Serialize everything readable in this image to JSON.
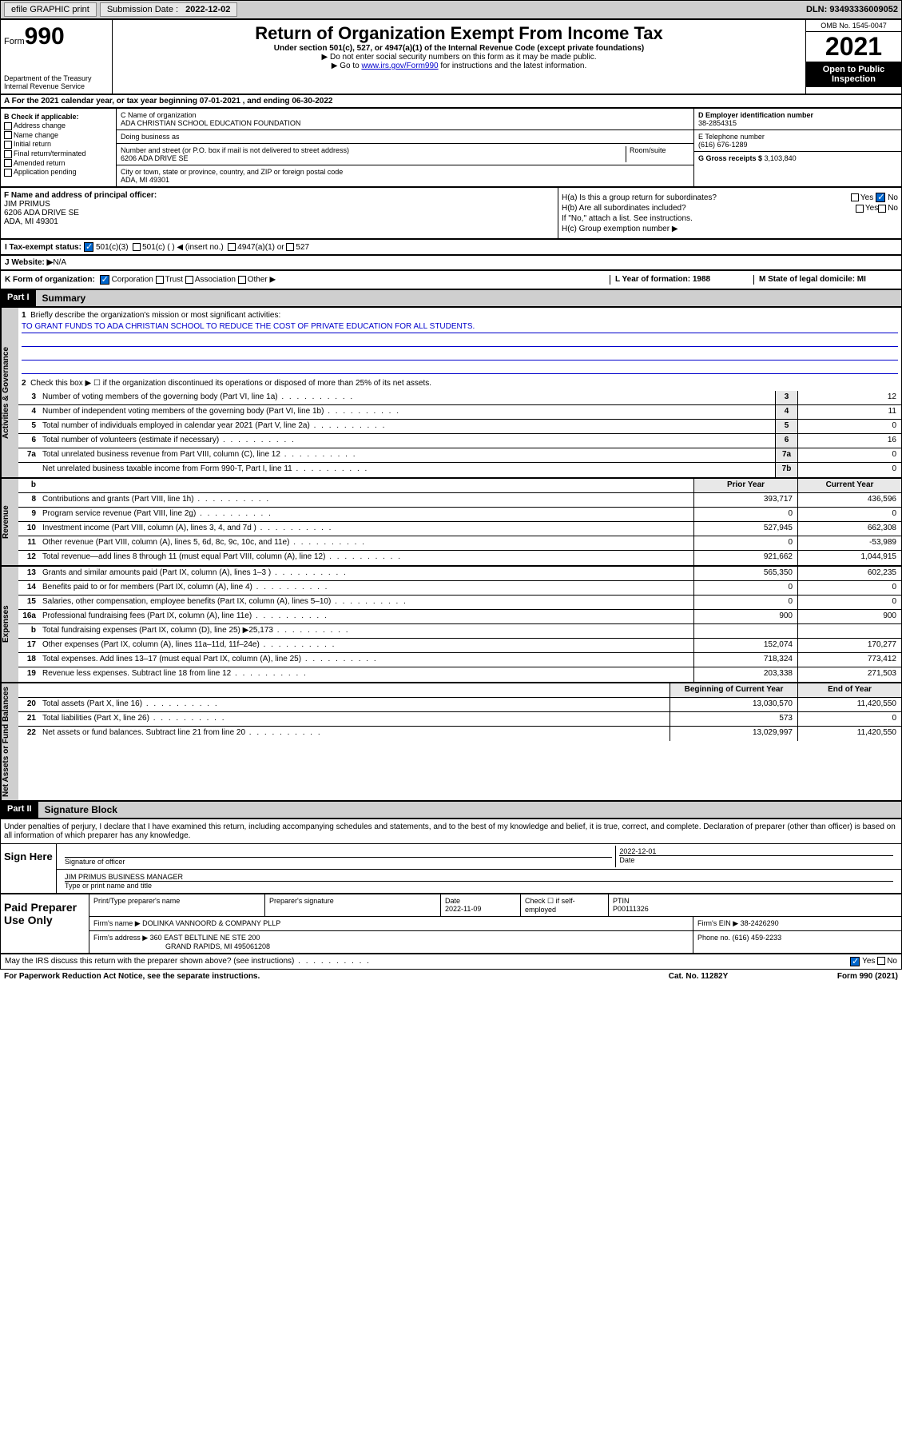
{
  "topbar": {
    "efile": "efile GRAPHIC print",
    "sub_label": "Submission Date : ",
    "sub_date": "2022-12-02",
    "dln": "DLN: 93493336009052"
  },
  "header": {
    "form_word": "Form",
    "form_num": "990",
    "dept": "Department of the Treasury",
    "irs": "Internal Revenue Service",
    "title": "Return of Organization Exempt From Income Tax",
    "subtitle": "Under section 501(c), 527, or 4947(a)(1) of the Internal Revenue Code (except private foundations)",
    "note1": "▶ Do not enter social security numbers on this form as it may be made public.",
    "note2_pre": "▶ Go to ",
    "note2_link": "www.irs.gov/Form990",
    "note2_post": " for instructions and the latest information.",
    "omb": "OMB No. 1545-0047",
    "year": "2021",
    "inspect": "Open to Public Inspection"
  },
  "section_a": "A For the 2021 calendar year, or tax year beginning 07-01-2021   , and ending 06-30-2022",
  "col_b": {
    "title": "B Check if applicable:",
    "opts": [
      "Address change",
      "Name change",
      "Initial return",
      "Final return/terminated",
      "Amended return",
      "Application pending"
    ]
  },
  "col_c": {
    "name_label": "C Name of organization",
    "name": "ADA CHRISTIAN SCHOOL EDUCATION FOUNDATION",
    "dba": "Doing business as",
    "addr_label": "Number and street (or P.O. box if mail is not delivered to street address)",
    "room": "Room/suite",
    "addr": "6206 ADA DRIVE SE",
    "city_label": "City or town, state or province, country, and ZIP or foreign postal code",
    "city": "ADA, MI  49301"
  },
  "col_d": {
    "d_label": "D Employer identification number",
    "d_val": "38-2854315",
    "e_label": "E Telephone number",
    "e_val": "(616) 676-1289",
    "g_label": "G Gross receipts $ ",
    "g_val": "3,103,840"
  },
  "col_f": {
    "label": "F Name and address of principal officer:",
    "name": "JIM PRIMUS",
    "addr1": "6206 ADA DRIVE SE",
    "addr2": "ADA, MI  49301"
  },
  "col_h": {
    "ha": "H(a)  Is this a group return for subordinates?",
    "hb": "H(b)  Are all subordinates included?",
    "hb_note": "If \"No,\" attach a list. See instructions.",
    "hc": "H(c)  Group exemption number ▶",
    "yes": "Yes",
    "no": "No"
  },
  "row_i": {
    "label": "I   Tax-exempt status:",
    "o1": "501(c)(3)",
    "o2": "501(c) (  ) ◀ (insert no.)",
    "o3": "4947(a)(1) or",
    "o4": "527"
  },
  "row_j": {
    "label": "J   Website: ▶ ",
    "val": "N/A"
  },
  "row_k": {
    "left": "K Form of organization:",
    "corp": "Corporation",
    "trust": "Trust",
    "assoc": "Association",
    "other": "Other ▶",
    "l": "L Year of formation: 1988",
    "m": "M State of legal domicile: MI"
  },
  "part1": {
    "hdr": "Part I",
    "title": "Summary",
    "q1": "Briefly describe the organization's mission or most significant activities:",
    "mission": "TO GRANT FUNDS TO ADA CHRISTIAN SCHOOL TO REDUCE THE COST OF PRIVATE EDUCATION FOR ALL STUDENTS.",
    "q2": "Check this box ▶ ☐  if the organization discontinued its operations or disposed of more than 25% of its net assets.",
    "lines_gov": [
      {
        "n": "3",
        "t": "Number of voting members of the governing body (Part VI, line 1a)",
        "b": "3",
        "v": "12"
      },
      {
        "n": "4",
        "t": "Number of independent voting members of the governing body (Part VI, line 1b)",
        "b": "4",
        "v": "11"
      },
      {
        "n": "5",
        "t": "Total number of individuals employed in calendar year 2021 (Part V, line 2a)",
        "b": "5",
        "v": "0"
      },
      {
        "n": "6",
        "t": "Total number of volunteers (estimate if necessary)",
        "b": "6",
        "v": "16"
      },
      {
        "n": "7a",
        "t": "Total unrelated business revenue from Part VIII, column (C), line 12",
        "b": "7a",
        "v": "0"
      },
      {
        "n": "",
        "t": "Net unrelated business taxable income from Form 990-T, Part I, line 11",
        "b": "7b",
        "v": "0"
      }
    ],
    "col_hdr_prior": "Prior Year",
    "col_hdr_curr": "Current Year",
    "lines_rev": [
      {
        "n": "8",
        "t": "Contributions and grants (Part VIII, line 1h)",
        "p": "393,717",
        "c": "436,596"
      },
      {
        "n": "9",
        "t": "Program service revenue (Part VIII, line 2g)",
        "p": "0",
        "c": "0"
      },
      {
        "n": "10",
        "t": "Investment income (Part VIII, column (A), lines 3, 4, and 7d )",
        "p": "527,945",
        "c": "662,308"
      },
      {
        "n": "11",
        "t": "Other revenue (Part VIII, column (A), lines 5, 6d, 8c, 9c, 10c, and 11e)",
        "p": "0",
        "c": "-53,989"
      },
      {
        "n": "12",
        "t": "Total revenue—add lines 8 through 11 (must equal Part VIII, column (A), line 12)",
        "p": "921,662",
        "c": "1,044,915"
      }
    ],
    "lines_exp": [
      {
        "n": "13",
        "t": "Grants and similar amounts paid (Part IX, column (A), lines 1–3 )",
        "p": "565,350",
        "c": "602,235"
      },
      {
        "n": "14",
        "t": "Benefits paid to or for members (Part IX, column (A), line 4)",
        "p": "0",
        "c": "0"
      },
      {
        "n": "15",
        "t": "Salaries, other compensation, employee benefits (Part IX, column (A), lines 5–10)",
        "p": "0",
        "c": "0"
      },
      {
        "n": "16a",
        "t": "Professional fundraising fees (Part IX, column (A), line 11e)",
        "p": "900",
        "c": "900"
      },
      {
        "n": "b",
        "t": "Total fundraising expenses (Part IX, column (D), line 25) ▶25,173",
        "p": "",
        "c": ""
      },
      {
        "n": "17",
        "t": "Other expenses (Part IX, column (A), lines 11a–11d, 11f–24e)",
        "p": "152,074",
        "c": "170,277"
      },
      {
        "n": "18",
        "t": "Total expenses. Add lines 13–17 (must equal Part IX, column (A), line 25)",
        "p": "718,324",
        "c": "773,412"
      },
      {
        "n": "19",
        "t": "Revenue less expenses. Subtract line 18 from line 12",
        "p": "203,338",
        "c": "271,503"
      }
    ],
    "col_hdr_beg": "Beginning of Current Year",
    "col_hdr_end": "End of Year",
    "lines_net": [
      {
        "n": "20",
        "t": "Total assets (Part X, line 16)",
        "p": "13,030,570",
        "c": "11,420,550"
      },
      {
        "n": "21",
        "t": "Total liabilities (Part X, line 26)",
        "p": "573",
        "c": "0"
      },
      {
        "n": "22",
        "t": "Net assets or fund balances. Subtract line 21 from line 20",
        "p": "13,029,997",
        "c": "11,420,550"
      }
    ],
    "side_gov": "Activities & Governance",
    "side_rev": "Revenue",
    "side_exp": "Expenses",
    "side_net": "Net Assets or Fund Balances"
  },
  "part2": {
    "hdr": "Part II",
    "title": "Signature Block",
    "decl": "Under penalties of perjury, I declare that I have examined this return, including accompanying schedules and statements, and to the best of my knowledge and belief, it is true, correct, and complete. Declaration of preparer (other than officer) is based on all information of which preparer has any knowledge.",
    "sign_here": "Sign Here",
    "sig_officer": "Signature of officer",
    "sig_date_label": "Date",
    "sig_date": "2022-12-01",
    "officer_name": "JIM PRIMUS  BUSINESS MANAGER",
    "type_name": "Type or print name and title",
    "paid": "Paid Preparer Use Only",
    "prep_name": "Print/Type preparer's name",
    "prep_sig": "Preparer's signature",
    "prep_date_l": "Date",
    "prep_date": "2022-11-09",
    "prep_check": "Check ☐ if self-employed",
    "ptin_l": "PTIN",
    "ptin": "P00111326",
    "firm_name_l": "Firm's name    ▶ ",
    "firm_name": "DOLINKA VANNOORD & COMPANY PLLP",
    "firm_ein_l": "Firm's EIN ▶ ",
    "firm_ein": "38-2426290",
    "firm_addr_l": "Firm's address ▶ ",
    "firm_addr1": "360 EAST BELTLINE NE STE 200",
    "firm_addr2": "GRAND RAPIDS, MI  495061208",
    "firm_phone_l": "Phone no. ",
    "firm_phone": "(616) 459-2233",
    "discuss": "May the IRS discuss this return with the preparer shown above? (see instructions)",
    "paperwork": "For Paperwork Reduction Act Notice, see the separate instructions.",
    "catno": "Cat. No. 11282Y",
    "formno": "Form 990 (2021)"
  }
}
